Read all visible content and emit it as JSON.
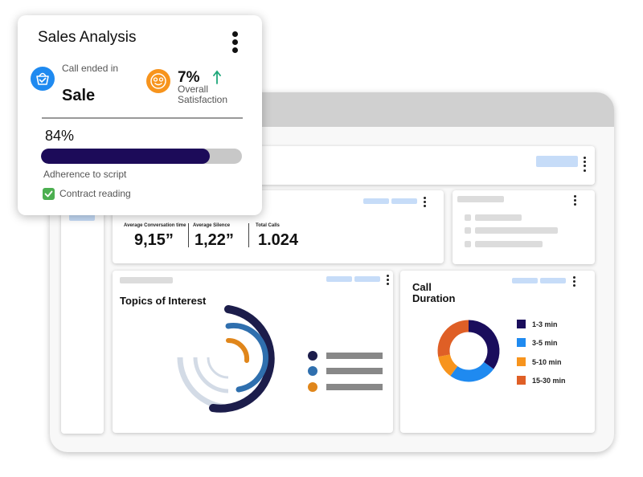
{
  "popup": {
    "title": "Sales Analysis",
    "call_status_label": "Call ended in",
    "call_result": "Sale",
    "satisfaction_value": "7%",
    "satisfaction_label": "Overall Satisfaction",
    "adherence_value": "84%",
    "adherence_fraction": 0.84,
    "adherence_label": "Adherence to script",
    "checkbox_label": "Contract reading",
    "checkbox_checked": true
  },
  "stats": {
    "avg_conversation_label": "Average Conversation time",
    "avg_conversation_value": "9,15”",
    "avg_silence_label": "Average Silence",
    "avg_silence_value": "1,22”",
    "total_calls_label": "Total Calls",
    "total_calls_value": "1.024"
  },
  "topics": {
    "title": "Topics of Interest",
    "legend_colors": [
      "#1c1d4b",
      "#2f6fae",
      "#e0861b"
    ]
  },
  "call_duration": {
    "title_line1": "Call",
    "title_line2": "Duration"
  },
  "chart_data": {
    "type": "pie",
    "title": "Call Duration",
    "categories": [
      "1-3 min",
      "3-5 min",
      "5-10 min",
      "15-30 min"
    ],
    "values": [
      35,
      25,
      12,
      28
    ],
    "colors": [
      "#1a0d5c",
      "#1f8af0",
      "#f7941d",
      "#df5f26"
    ]
  },
  "colors": {
    "accent_dark": "#1c0b59",
    "blue_icon": "#1f8af0",
    "orange_icon": "#f7941d",
    "green_arrow": "#1fa87a",
    "check_green": "#4caf50"
  }
}
